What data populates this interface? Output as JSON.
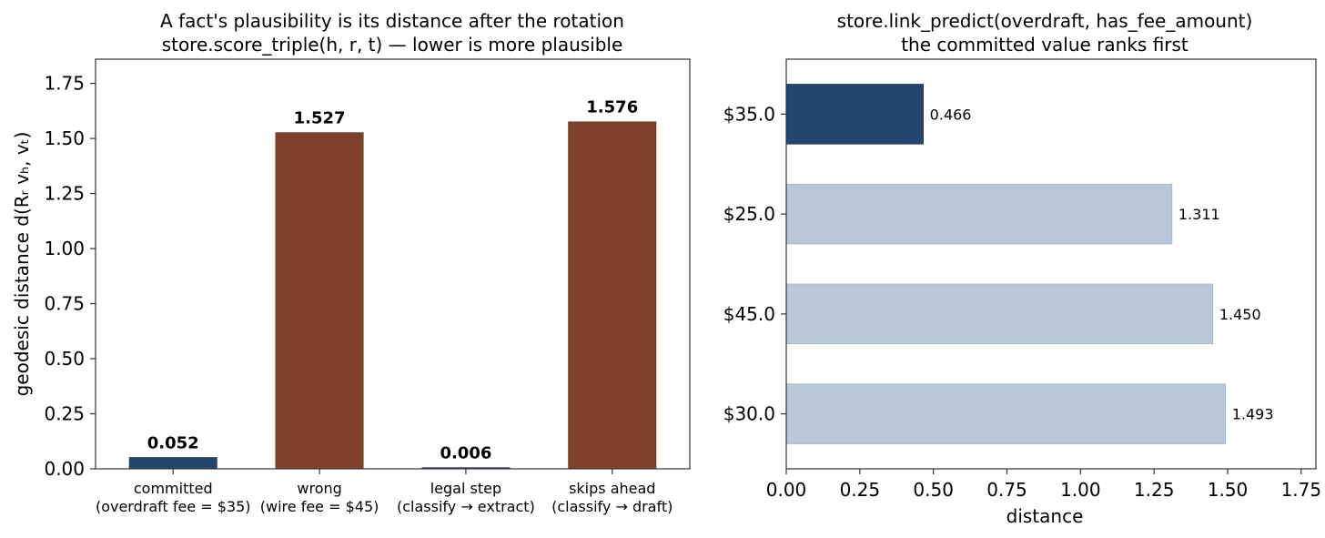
{
  "chart_data": [
    {
      "type": "bar",
      "title": "A fact's plausibility is its distance after the rotation\nstore.score_triple(h, r, t) — lower is more plausible",
      "title_lines": [
        "A fact's plausibility is its distance after the rotation",
        "store.score_triple(h, r, t) — lower is more plausible"
      ],
      "ylabel": "geodesic distance  d(Rᵣ vₕ, vₜ)",
      "xlabel": "",
      "ylim": [
        0,
        1.86
      ],
      "yticks": [
        "0.00",
        "0.25",
        "0.50",
        "0.75",
        "1.00",
        "1.25",
        "1.50",
        "1.75"
      ],
      "ytick_values": [
        0,
        0.25,
        0.5,
        0.75,
        1.0,
        1.25,
        1.5,
        1.75
      ],
      "grid": false,
      "categories": [
        [
          "committed",
          "(overdraft fee = $35)"
        ],
        [
          "wrong",
          "(wire fee = $45)"
        ],
        [
          "legal step",
          "(classify → extract)"
        ],
        [
          "skips ahead",
          "(classify → draft)"
        ]
      ],
      "values": [
        0.052,
        1.527,
        0.006,
        1.576
      ],
      "value_labels": [
        "0.052",
        "1.527",
        "0.006",
        "1.576"
      ],
      "colors": [
        "#22456e",
        "#7f412c",
        "#22456e",
        "#7f412c"
      ]
    },
    {
      "type": "bar",
      "orientation": "horizontal",
      "title": "store.link_predict(overdraft, has_fee_amount)\nthe committed value ranks first",
      "title_lines": [
        "store.link_predict(overdraft, has_fee_amount)",
        "the committed value ranks first"
      ],
      "xlabel": "distance",
      "ylabel": "",
      "xlim": [
        0,
        1.8
      ],
      "xticks": [
        "0.00",
        "0.25",
        "0.50",
        "0.75",
        "1.00",
        "1.25",
        "1.50",
        "1.75"
      ],
      "xtick_values": [
        0,
        0.25,
        0.5,
        0.75,
        1.0,
        1.25,
        1.5,
        1.75
      ],
      "grid": false,
      "categories": [
        "$35.0",
        "$25.0",
        "$45.0",
        "$30.0"
      ],
      "values": [
        0.466,
        1.311,
        1.45,
        1.493
      ],
      "value_labels": [
        "0.466",
        "1.311",
        "1.450",
        "1.493"
      ],
      "colors": [
        "#22456e",
        "#b9c7d8",
        "#b9c7d8",
        "#b9c7d8"
      ]
    }
  ]
}
